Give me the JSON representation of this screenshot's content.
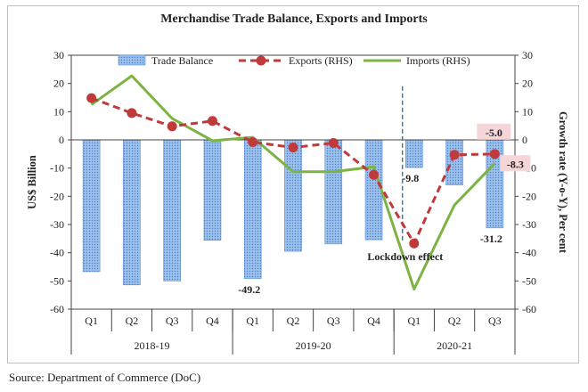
{
  "title": "Merchandise Trade Balance, Exports and Imports",
  "source": "Source: Department of Commerce (DoC)",
  "chart_data": {
    "type": "bar+line",
    "categories": [
      "Q1",
      "Q2",
      "Q3",
      "Q4",
      "Q1",
      "Q2",
      "Q3",
      "Q4",
      "Q1",
      "Q2",
      "Q3"
    ],
    "year_groups": [
      {
        "label": "2018-19",
        "start": 0,
        "end": 3
      },
      {
        "label": "2019-20",
        "start": 4,
        "end": 7
      },
      {
        "label": "2020-21",
        "start": 8,
        "end": 10
      }
    ],
    "ylabel": "US$ Billion",
    "y2label": "Growth rate (Y-o-Y), Per cent",
    "ylim": [
      -60,
      30
    ],
    "y2lim": [
      -60,
      30
    ],
    "yticks": [
      -60,
      -50,
      -40,
      -30,
      -20,
      -10,
      0,
      10,
      20,
      30
    ],
    "series": [
      {
        "name": "Trade Balance",
        "type": "bar",
        "axis": "left",
        "color": "#6f9fd8",
        "values": [
          -46.7,
          -51.4,
          -50.0,
          -35.6,
          -49.2,
          -39.5,
          -36.9,
          -35.4,
          -9.8,
          -16.0,
          -31.2
        ]
      },
      {
        "name": "Exports (RHS)",
        "type": "line",
        "axis": "right",
        "color": "#c0393b",
        "values": [
          14.8,
          9.5,
          4.8,
          6.7,
          -0.8,
          -2.7,
          -1.1,
          -12.4,
          -36.7,
          -5.3,
          -5.0
        ]
      },
      {
        "name": "Imports (RHS)",
        "type": "line",
        "axis": "right",
        "color": "#7cb342",
        "values": [
          12.5,
          22.7,
          7.6,
          -0.3,
          0.9,
          -11.3,
          -11.3,
          -9.5,
          -52.9,
          -23.1,
          -8.3
        ]
      }
    ],
    "annotations": [
      {
        "text": "-49.2",
        "x_index": 4,
        "y": -49.2,
        "anchor": "below-bar"
      },
      {
        "text": "-9.8",
        "x_index": 8,
        "y": -9.8,
        "anchor": "below-bar"
      },
      {
        "text": "-31.2",
        "x_index": 10,
        "y": -31.2,
        "anchor": "below-bar"
      },
      {
        "text": "-5.0",
        "x_index": 10,
        "y": -5.0,
        "anchor": "above-point",
        "highlight": true
      },
      {
        "text": "-8.3",
        "x_index": 10,
        "y": -8.3,
        "anchor": "right-of-point",
        "highlight": true
      },
      {
        "text": "Lockdown effect",
        "x_index": 8,
        "y": -40,
        "anchor": "label"
      }
    ],
    "lockdown_marker_index": 7.6
  }
}
